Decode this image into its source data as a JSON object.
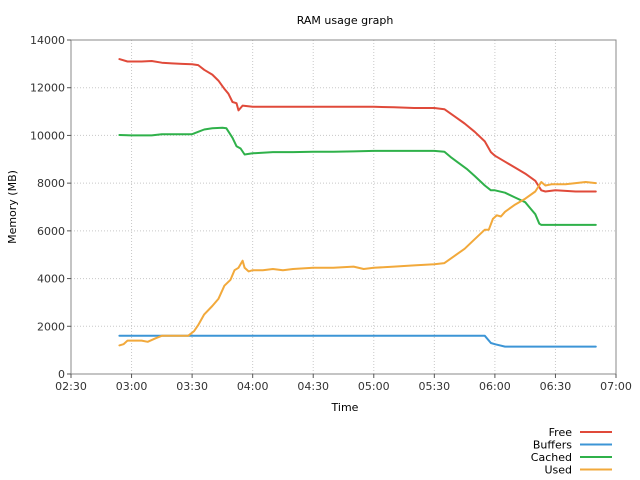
{
  "chart_data": {
    "type": "line",
    "title": "RAM usage graph",
    "xlabel": "Time",
    "ylabel": "Memory (MB)",
    "xlim": [
      "02:30",
      "07:00"
    ],
    "ylim": [
      0,
      14000
    ],
    "x_ticks": [
      "02:30",
      "03:00",
      "03:30",
      "04:00",
      "04:30",
      "05:00",
      "05:30",
      "06:00",
      "06:30",
      "07:00"
    ],
    "y_ticks": [
      0,
      2000,
      4000,
      6000,
      8000,
      10000,
      12000,
      14000
    ],
    "grid": true,
    "legend_position": "bottom-right",
    "series": [
      {
        "name": "Free",
        "color": "#e04a3a",
        "points": [
          [
            "02:54",
            13200
          ],
          [
            "02:58",
            13100
          ],
          [
            "03:05",
            13100
          ],
          [
            "03:10",
            13120
          ],
          [
            "03:15",
            13050
          ],
          [
            "03:20",
            13020
          ],
          [
            "03:25",
            13000
          ],
          [
            "03:30",
            12980
          ],
          [
            "03:33",
            12950
          ],
          [
            "03:36",
            12750
          ],
          [
            "03:40",
            12550
          ],
          [
            "03:43",
            12300
          ],
          [
            "03:46",
            11950
          ],
          [
            "03:48",
            11750
          ],
          [
            "03:50",
            11400
          ],
          [
            "03:52",
            11350
          ],
          [
            "03:53",
            11050
          ],
          [
            "03:55",
            11250
          ],
          [
            "04:00",
            11200
          ],
          [
            "04:10",
            11200
          ],
          [
            "04:20",
            11200
          ],
          [
            "04:30",
            11200
          ],
          [
            "04:40",
            11200
          ],
          [
            "04:50",
            11200
          ],
          [
            "05:00",
            11200
          ],
          [
            "05:10",
            11180
          ],
          [
            "05:20",
            11150
          ],
          [
            "05:30",
            11150
          ],
          [
            "05:35",
            11100
          ],
          [
            "05:40",
            10800
          ],
          [
            "05:45",
            10500
          ],
          [
            "05:50",
            10150
          ],
          [
            "05:55",
            9750
          ],
          [
            "05:58",
            9300
          ],
          [
            "06:00",
            9150
          ],
          [
            "06:05",
            8900
          ],
          [
            "06:10",
            8650
          ],
          [
            "06:15",
            8400
          ],
          [
            "06:20",
            8100
          ],
          [
            "06:23",
            7700
          ],
          [
            "06:25",
            7650
          ],
          [
            "06:30",
            7700
          ],
          [
            "06:40",
            7650
          ],
          [
            "06:50",
            7650
          ]
        ]
      },
      {
        "name": "Buffers",
        "color": "#3c95d6",
        "points": [
          [
            "02:54",
            1600
          ],
          [
            "03:30",
            1600
          ],
          [
            "04:00",
            1600
          ],
          [
            "04:30",
            1600
          ],
          [
            "05:00",
            1600
          ],
          [
            "05:30",
            1600
          ],
          [
            "05:55",
            1600
          ],
          [
            "05:58",
            1300
          ],
          [
            "06:00",
            1250
          ],
          [
            "06:05",
            1150
          ],
          [
            "06:20",
            1150
          ],
          [
            "06:50",
            1150
          ]
        ]
      },
      {
        "name": "Cached",
        "color": "#2fb14a",
        "points": [
          [
            "02:54",
            10020
          ],
          [
            "03:00",
            10000
          ],
          [
            "03:10",
            10000
          ],
          [
            "03:15",
            10050
          ],
          [
            "03:20",
            10050
          ],
          [
            "03:30",
            10050
          ],
          [
            "03:33",
            10150
          ],
          [
            "03:36",
            10250
          ],
          [
            "03:40",
            10300
          ],
          [
            "03:45",
            10320
          ],
          [
            "03:47",
            10300
          ],
          [
            "03:50",
            9900
          ],
          [
            "03:52",
            9550
          ],
          [
            "03:54",
            9450
          ],
          [
            "03:56",
            9200
          ],
          [
            "04:00",
            9250
          ],
          [
            "04:10",
            9300
          ],
          [
            "04:20",
            9300
          ],
          [
            "04:30",
            9320
          ],
          [
            "04:40",
            9320
          ],
          [
            "04:50",
            9330
          ],
          [
            "05:00",
            9350
          ],
          [
            "05:10",
            9350
          ],
          [
            "05:20",
            9350
          ],
          [
            "05:30",
            9350
          ],
          [
            "05:35",
            9320
          ],
          [
            "05:38",
            9100
          ],
          [
            "05:42",
            8850
          ],
          [
            "05:46",
            8600
          ],
          [
            "05:50",
            8300
          ],
          [
            "05:55",
            7900
          ],
          [
            "05:58",
            7700
          ],
          [
            "06:00",
            7700
          ],
          [
            "06:05",
            7600
          ],
          [
            "06:10",
            7400
          ],
          [
            "06:15",
            7200
          ],
          [
            "06:18",
            6900
          ],
          [
            "06:20",
            6700
          ],
          [
            "06:22",
            6300
          ],
          [
            "06:23",
            6250
          ],
          [
            "06:30",
            6250
          ],
          [
            "06:40",
            6250
          ],
          [
            "06:50",
            6250
          ]
        ]
      },
      {
        "name": "Used",
        "color": "#f2a93b",
        "points": [
          [
            "02:54",
            1200
          ],
          [
            "02:56",
            1250
          ],
          [
            "02:58",
            1400
          ],
          [
            "03:00",
            1400
          ],
          [
            "03:05",
            1400
          ],
          [
            "03:08",
            1350
          ],
          [
            "03:12",
            1500
          ],
          [
            "03:15",
            1600
          ],
          [
            "03:20",
            1600
          ],
          [
            "03:28",
            1600
          ],
          [
            "03:31",
            1800
          ],
          [
            "03:33",
            2050
          ],
          [
            "03:36",
            2500
          ],
          [
            "03:40",
            2850
          ],
          [
            "03:43",
            3150
          ],
          [
            "03:46",
            3700
          ],
          [
            "03:49",
            3950
          ],
          [
            "03:51",
            4350
          ],
          [
            "03:53",
            4450
          ],
          [
            "03:55",
            4750
          ],
          [
            "03:56",
            4450
          ],
          [
            "03:58",
            4300
          ],
          [
            "04:00",
            4350
          ],
          [
            "04:05",
            4350
          ],
          [
            "04:10",
            4400
          ],
          [
            "04:15",
            4350
          ],
          [
            "04:20",
            4400
          ],
          [
            "04:30",
            4450
          ],
          [
            "04:40",
            4450
          ],
          [
            "04:50",
            4500
          ],
          [
            "04:55",
            4400
          ],
          [
            "05:00",
            4450
          ],
          [
            "05:10",
            4500
          ],
          [
            "05:20",
            4550
          ],
          [
            "05:30",
            4600
          ],
          [
            "05:35",
            4650
          ],
          [
            "05:40",
            4950
          ],
          [
            "05:45",
            5250
          ],
          [
            "05:50",
            5650
          ],
          [
            "05:55",
            6050
          ],
          [
            "05:57",
            6050
          ],
          [
            "05:59",
            6500
          ],
          [
            "06:01",
            6650
          ],
          [
            "06:03",
            6600
          ],
          [
            "06:05",
            6800
          ],
          [
            "06:10",
            7100
          ],
          [
            "06:15",
            7350
          ],
          [
            "06:20",
            7650
          ],
          [
            "06:23",
            8050
          ],
          [
            "06:25",
            7900
          ],
          [
            "06:28",
            7950
          ],
          [
            "06:35",
            7950
          ],
          [
            "06:40",
            8000
          ],
          [
            "06:45",
            8050
          ],
          [
            "06:50",
            8000
          ]
        ]
      }
    ]
  }
}
